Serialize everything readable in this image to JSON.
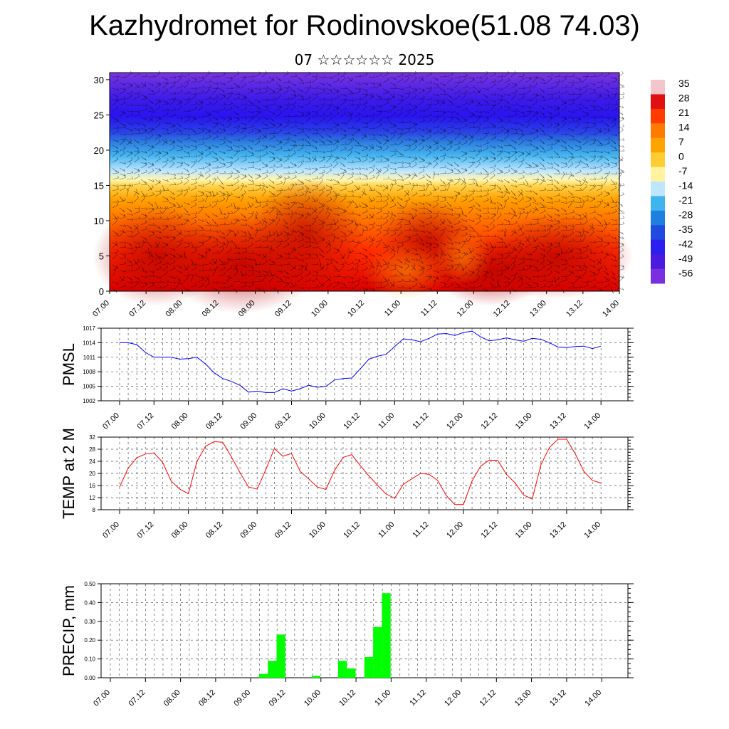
{
  "title": "Kazhydromet for Rodinovskoe(51.08 74.03)",
  "subtitle": "07 ☆☆☆☆☆☆ 2025",
  "chart_data": [
    {
      "type": "heatmap",
      "name": "temperature cross-section",
      "y_ticks": [
        "0",
        "5",
        "10",
        "15",
        "20",
        "25",
        "30"
      ],
      "ylim": [
        0,
        31
      ],
      "x_ticks": [
        "07.00",
        "07.12",
        "08.00",
        "08.12",
        "09.00",
        "09.12",
        "10.00",
        "10.12",
        "11.00",
        "11.12",
        "12.00",
        "12.12",
        "13.00",
        "13.12",
        "14.00"
      ],
      "colorbar_labels": [
        "35",
        "28",
        "21",
        "14",
        "7",
        "0",
        "-7",
        "-14",
        "-21",
        "-28",
        "-35",
        "-42",
        "-49",
        "-56"
      ],
      "colorbar_colors": [
        "#f4c6cc",
        "#e01010",
        "#ff3b00",
        "#ff7a00",
        "#ffa300",
        "#ffcc33",
        "#fff3a0",
        "#bfe6ff",
        "#3fb5f0",
        "#1f7fe0",
        "#1f4be0",
        "#2b1ff0",
        "#4a1ae0",
        "#7a30e0"
      ]
    },
    {
      "type": "line",
      "ylabel": "PMSL",
      "ylim": [
        1002,
        1017
      ],
      "y_ticks": [
        "1017",
        "1014",
        "1011",
        "1008",
        "1005",
        "1002"
      ],
      "x_ticks": [
        "07.00",
        "07.12",
        "08.00",
        "08.12",
        "09.00",
        "09.12",
        "10.00",
        "10.12",
        "11.00",
        "11.12",
        "12.00",
        "12.12",
        "13.00",
        "13.12",
        "14.00"
      ],
      "color": "#0000ff",
      "values": [
        1014,
        1014,
        1013.6,
        1012,
        1011,
        1011,
        1011,
        1010.6,
        1010.7,
        1011,
        1009.6,
        1007.8,
        1006.6,
        1006,
        1005.2,
        1003.8,
        1004,
        1003.7,
        1003.7,
        1004.5,
        1004,
        1004.5,
        1005.2,
        1004.8,
        1005,
        1006.3,
        1006.6,
        1006.7,
        1008.6,
        1010.6,
        1011.2,
        1011.6,
        1013.2,
        1014.8,
        1014.6,
        1014.2,
        1014.9,
        1015.8,
        1015.9,
        1015.5,
        1016.1,
        1016.4,
        1015.2,
        1014.4,
        1014.6,
        1015,
        1014.6,
        1014.3,
        1014.9,
        1014.7,
        1014,
        1013.1,
        1013,
        1013.2,
        1013.3,
        1012.8,
        1013.3
      ]
    },
    {
      "type": "line",
      "ylabel": "TEMP at 2 M",
      "ylim": [
        8,
        32
      ],
      "y_ticks": [
        "32",
        "28",
        "24",
        "20",
        "16",
        "12",
        "8"
      ],
      "x_ticks": [
        "07.00",
        "07.12",
        "08.00",
        "08.12",
        "09.00",
        "09.12",
        "10.00",
        "10.12",
        "11.00",
        "11.12",
        "12.00",
        "12.12",
        "13.00",
        "13.12",
        "14.00"
      ],
      "color": "#ff0000",
      "values": [
        15.5,
        21.8,
        25.2,
        26.4,
        26.8,
        23.7,
        17.5,
        14.8,
        13.3,
        24,
        29,
        30.5,
        30.3,
        25.5,
        20.3,
        15.5,
        14.8,
        21.2,
        28.2,
        25.7,
        26.6,
        20.7,
        18.2,
        15.5,
        14.7,
        21,
        25.3,
        26.2,
        22.6,
        19.2,
        16.1,
        13.2,
        11.8,
        16.4,
        18.2,
        20,
        19.7,
        17.7,
        12.7,
        9.7,
        9.7,
        17.5,
        22.4,
        24.4,
        24.3,
        19.7,
        16.9,
        12.9,
        11.5,
        22.8,
        28.6,
        31.3,
        31.3,
        26.5,
        20.7,
        17.7,
        16.8
      ]
    },
    {
      "type": "bar",
      "ylabel": "PRECIP, mm",
      "ylim": [
        0,
        0.5
      ],
      "y_ticks": [
        "0.50",
        "0.40",
        "0.30",
        "0.20",
        "0.10",
        "0.00"
      ],
      "x_ticks": [
        "07.00",
        "07.12",
        "08.00",
        "08.12",
        "09.00",
        "09.12",
        "10.00",
        "10.12",
        "11.00",
        "11.12",
        "12.00",
        "12.12",
        "13.00",
        "13.12",
        "14.00"
      ],
      "color": "#00ff00",
      "bars": [
        {
          "slot": 18,
          "value": 0.02
        },
        {
          "slot": 19,
          "value": 0.09
        },
        {
          "slot": 20,
          "value": 0.23
        },
        {
          "slot": 24,
          "value": 0.01
        },
        {
          "slot": 27,
          "value": 0.09
        },
        {
          "slot": 28,
          "value": 0.05
        },
        {
          "slot": 30,
          "value": 0.11
        },
        {
          "slot": 31,
          "value": 0.27
        },
        {
          "slot": 32,
          "value": 0.45
        }
      ]
    }
  ]
}
